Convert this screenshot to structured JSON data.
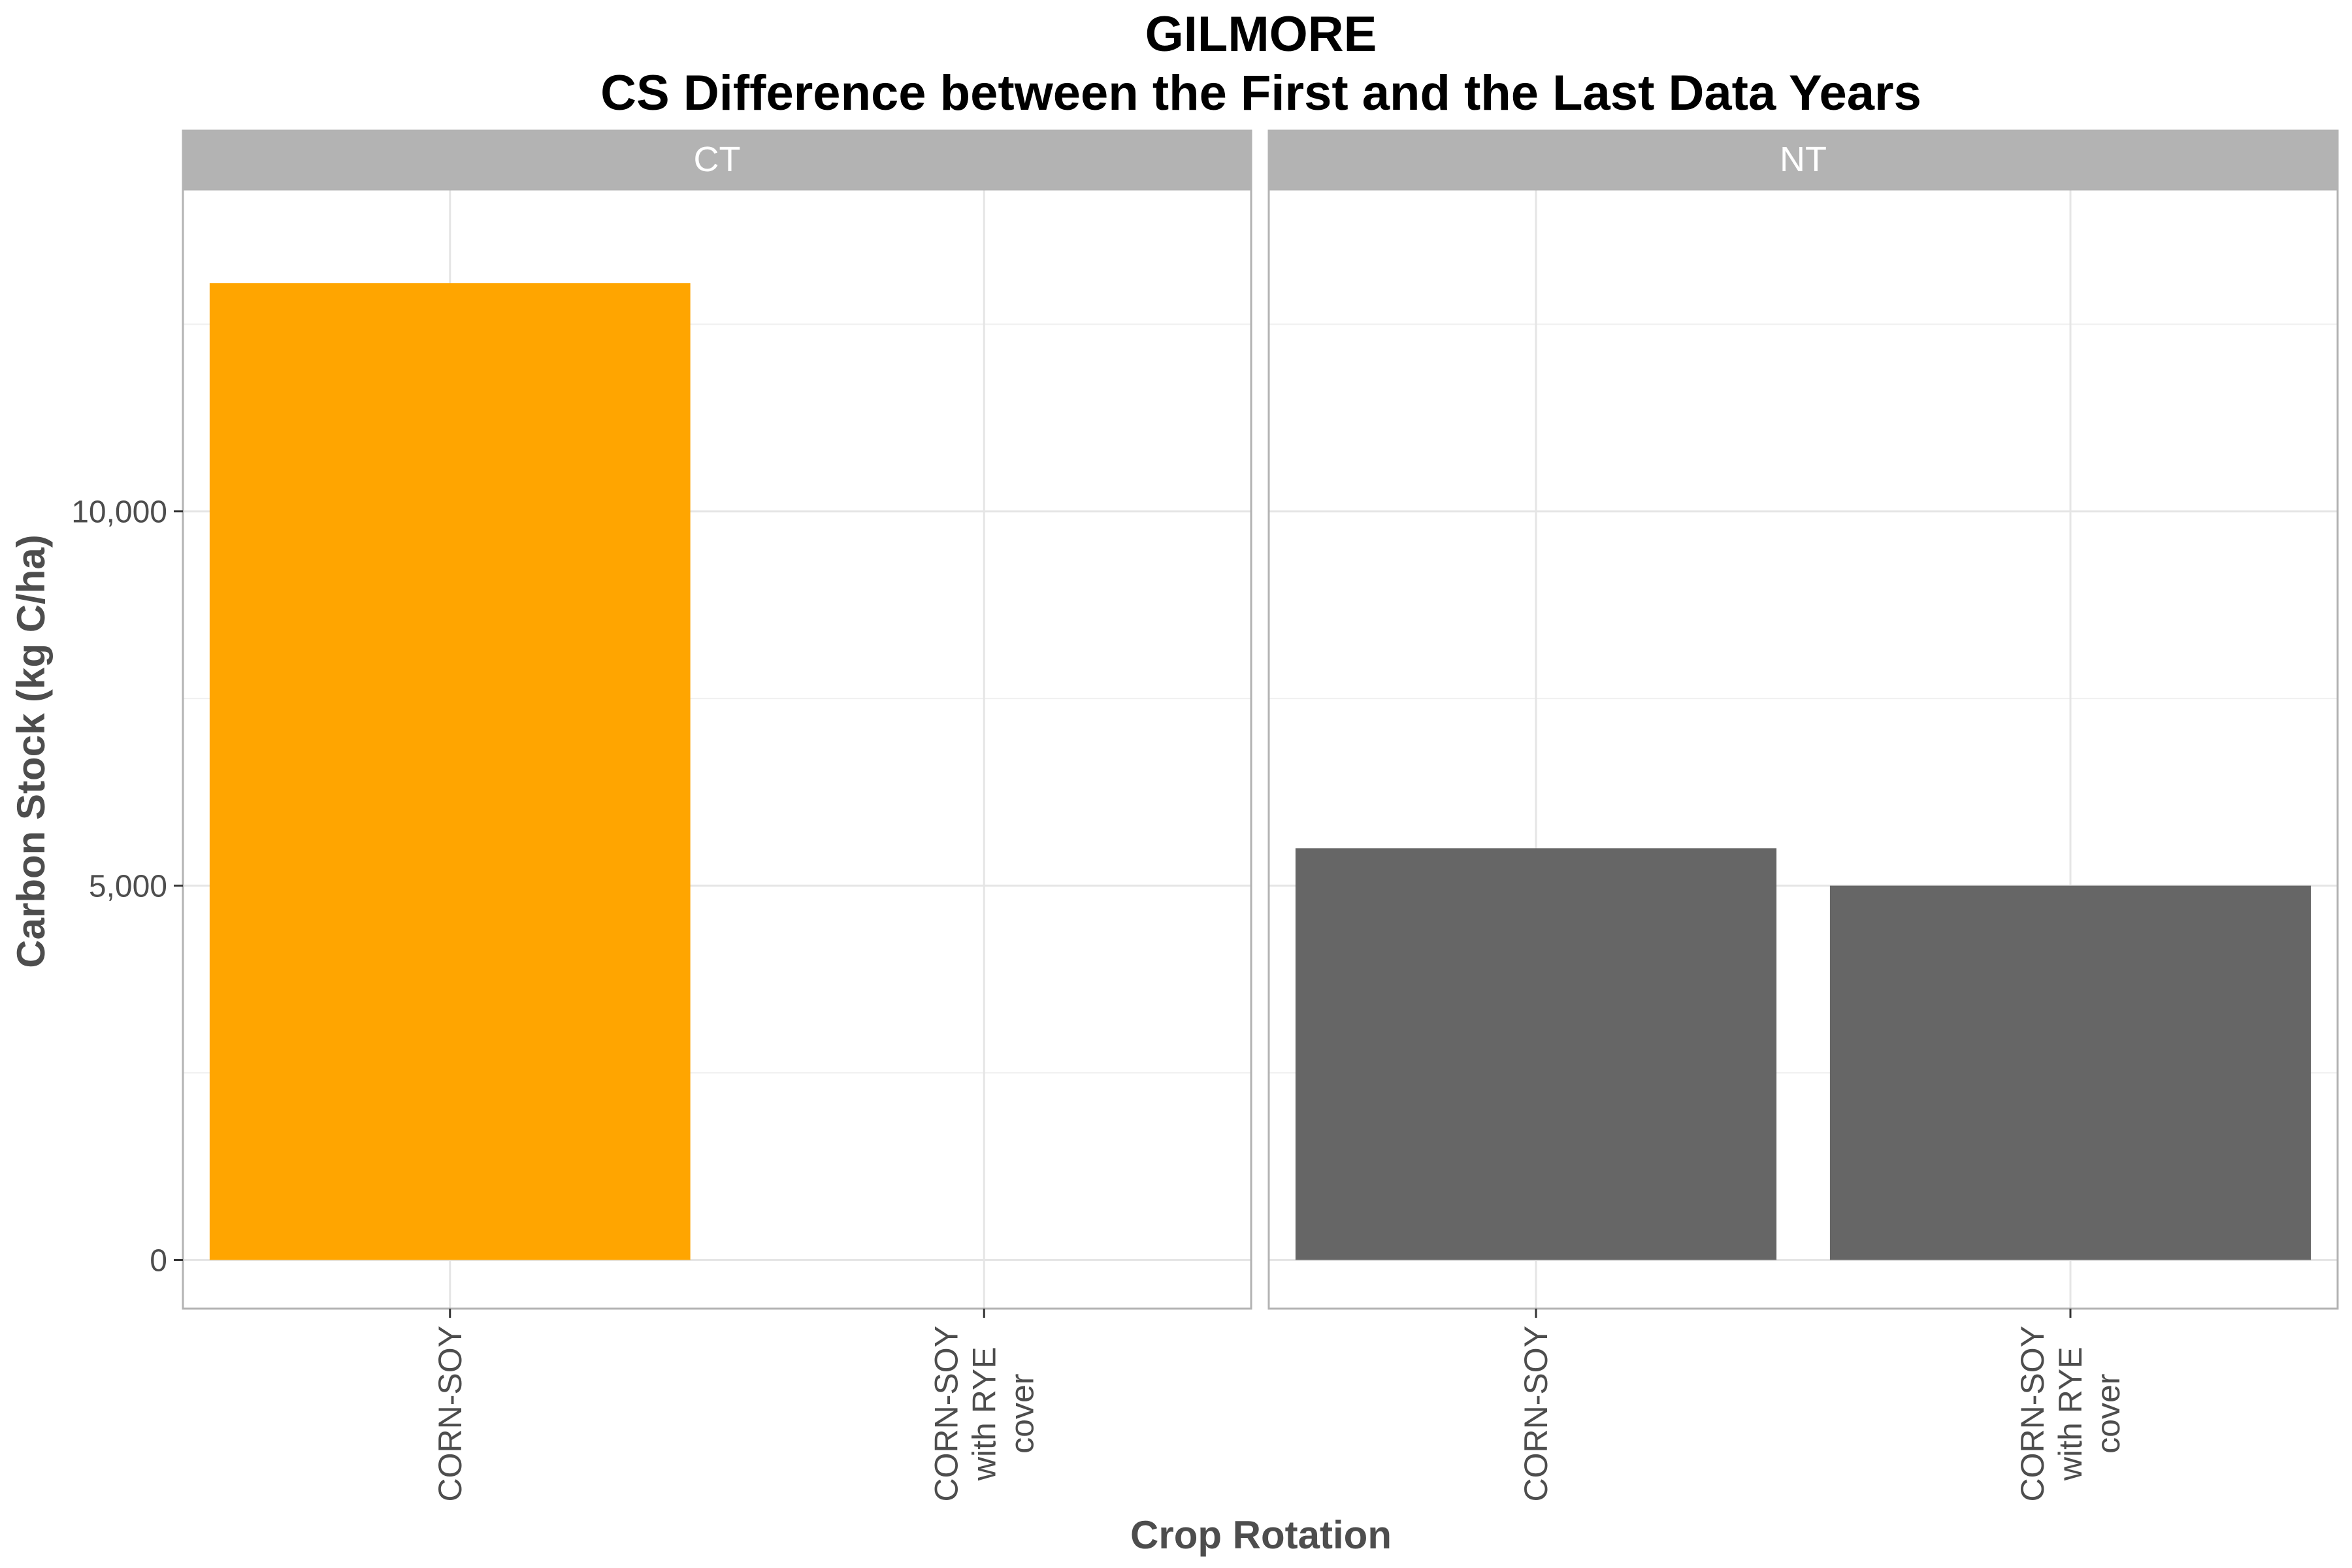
{
  "chart_data": {
    "type": "bar",
    "title": "GILMORE",
    "subtitle": "CS Difference between the First and the Last Data Years",
    "xlabel": "Crop Rotation",
    "ylabel": "Carbon Stock (kg C/ha)",
    "ylim": [
      -650,
      14300
    ],
    "yticks": [
      0,
      5000,
      10000
    ],
    "ytick_labels": [
      "0",
      "5,000",
      "10,000"
    ],
    "grid": true,
    "categories": [
      "CORN-SOY",
      "CORN-SOY\nwith RYE\ncover"
    ],
    "facets": [
      {
        "name": "CT",
        "bars": [
          {
            "category": "CORN-SOY",
            "value": 13050,
            "color": "#FFA500"
          },
          {
            "category": "CORN-SOY\nwith RYE\ncover",
            "value": null,
            "color": null
          }
        ]
      },
      {
        "name": "NT",
        "bars": [
          {
            "category": "CORN-SOY",
            "value": 5500,
            "color": "#666666"
          },
          {
            "category": "CORN-SOY\nwith RYE\ncover",
            "value": 5000,
            "color": "#666666"
          }
        ]
      }
    ]
  }
}
